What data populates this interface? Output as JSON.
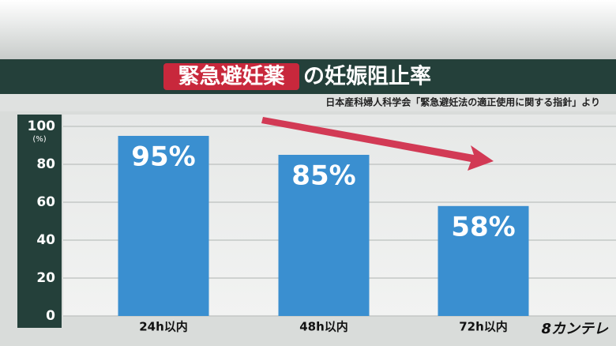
{
  "chart_data": {
    "type": "bar",
    "title_parts": [
      "緊急避妊薬",
      "の妊娠阻止率"
    ],
    "source": "日本産科婦人科学会「緊急避妊法の適正使用に関する指針」より",
    "y_unit": "(%)",
    "logo": "8カンテレ",
    "categories": [
      "24h以内",
      "48h以内",
      "72h以内"
    ],
    "values": [
      95,
      85,
      58
    ],
    "value_labels": [
      "95%",
      "85%",
      "58%"
    ],
    "color": "#3a8fd0",
    "ylim": [
      0,
      100
    ],
    "yticks": [
      0,
      20,
      40,
      60,
      80,
      100
    ],
    "grid": true
  }
}
